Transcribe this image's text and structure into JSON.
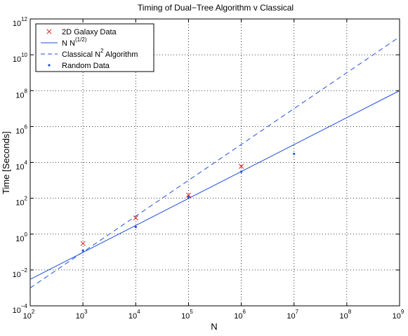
{
  "chart_data": {
    "type": "scatter",
    "title": "Timing of Dual−Tree Algorithm v Classical",
    "xlabel": "N",
    "ylabel": "Time [Seconds]",
    "x_scale": "log",
    "y_scale": "log",
    "xlim": [
      100,
      1000000000
    ],
    "ylim": [
      0.0001,
      1000000000000
    ],
    "x_ticks": [
      {
        "base": "10",
        "exp": "2"
      },
      {
        "base": "10",
        "exp": "3"
      },
      {
        "base": "10",
        "exp": "4"
      },
      {
        "base": "10",
        "exp": "5"
      },
      {
        "base": "10",
        "exp": "6"
      },
      {
        "base": "10",
        "exp": "7"
      },
      {
        "base": "10",
        "exp": "8"
      },
      {
        "base": "10",
        "exp": "9"
      }
    ],
    "y_ticks": [
      {
        "base": "10",
        "exp": "−4"
      },
      {
        "base": "10",
        "exp": "−2"
      },
      {
        "base": "10",
        "exp": "0"
      },
      {
        "base": "10",
        "exp": "2"
      },
      {
        "base": "10",
        "exp": "4"
      },
      {
        "base": "10",
        "exp": "6"
      },
      {
        "base": "10",
        "exp": "8"
      },
      {
        "base": "10",
        "exp": "10"
      },
      {
        "base": "10",
        "exp": "12"
      }
    ],
    "grid": "dotted",
    "legend_position": "top-left",
    "series": [
      {
        "name": "2D Galaxy Data",
        "legend_label": "2D Galaxy Data",
        "style": "x-marker",
        "color": "#e0201a",
        "x": [
          1000,
          10000,
          100000,
          1000000
        ],
        "y": [
          0.3,
          8,
          150,
          6000
        ]
      },
      {
        "name": "N N^(1/2)",
        "legend_label": "N N",
        "legend_sup": "(1/2)",
        "style": "solid-line",
        "color": "#1f4fd6",
        "x": [
          100,
          1000000000
        ],
        "y": [
          0.003,
          100000000
        ]
      },
      {
        "name": "Classical N^2 Algorithm",
        "legend_label": "Classical N",
        "legend_sup": "2",
        "legend_suffix": " Algorithm",
        "style": "dashed-line",
        "color": "#1f4fd6",
        "x": [
          100,
          1000000000
        ],
        "y": [
          0.001,
          100000000000
        ]
      },
      {
        "name": "Random Data",
        "legend_label": "Random Data",
        "style": "dot-marker",
        "color": "#1f4fd6",
        "x": [
          1000,
          10000,
          100000,
          1000000,
          10000000
        ],
        "y": [
          0.12,
          2.5,
          120,
          3000,
          30000
        ]
      }
    ]
  }
}
